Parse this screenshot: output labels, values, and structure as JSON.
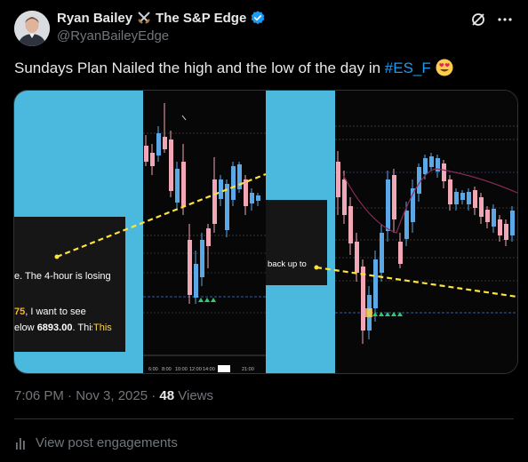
{
  "post": {
    "display_name": "Ryan Bailey",
    "display_name_suffix": "The S&P Edge",
    "handle": "@RyanBaileyEdge",
    "text_before_tag": "Sundays Plan Nailed the high and the low of the day in ",
    "hashtag": "#ES_F",
    "timestamp": "7:06 PM · Nov 3, 2025 · ",
    "views_count": "48",
    "views_label": " Views",
    "engagements_label": "View post engagements"
  },
  "media": {
    "left_panel_lines": {
      "line1": "e. The 4-hour is losing",
      "line2_highlight": "75",
      "line2_rest": ", I want to see",
      "line3_start": "elow ",
      "line3_bold": "6893.00",
      "line3_end": ". This"
    },
    "right_panel_text": "back up to",
    "time_axis_labels": [
      "6:00",
      "8:00",
      "10:00",
      "12:00",
      "14:00",
      "21:00"
    ],
    "colors": {
      "cyan_panel": "#4bb9de",
      "bull_candle": "#5aa9e6",
      "bear_candle": "#f2a7b6",
      "trendline": "#ffe23a",
      "highlight_orange": "#ffb020",
      "highlight_yellow": "#ffd24a"
    }
  },
  "icons": {
    "verified": "verified-badge-icon",
    "swords": "crossed-swords-icon",
    "grok": "grok-icon",
    "more": "more-icon",
    "emoji": "heart-eyes-emoji",
    "analytics": "analytics-icon"
  }
}
